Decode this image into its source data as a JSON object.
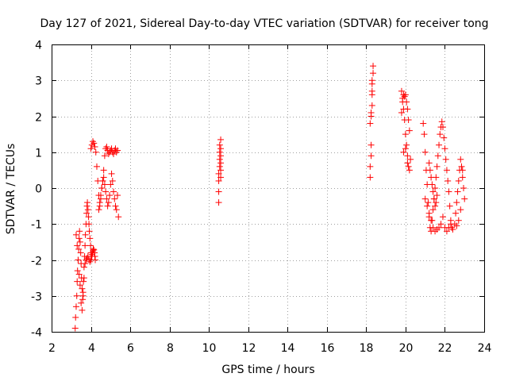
{
  "chart_data": {
    "type": "scatter",
    "title": "Day 127 of 2021, Sidereal Day-to-day VTEC variation (SDTVAR) for receiver tong",
    "xlabel": "GPS time / hours",
    "ylabel": "SDTVAR / TECUs",
    "xlim": [
      2,
      24
    ],
    "ylim": [
      -4,
      4
    ],
    "grid": true,
    "marker": "+",
    "color": "#ff0000",
    "xticks": [
      "2",
      "4",
      "6",
      "8",
      "10",
      "12",
      "14",
      "16",
      "18",
      "20",
      "22",
      "24"
    ],
    "yticks": [
      "-4",
      "-3",
      "-2",
      "-1",
      "0",
      "1",
      "2",
      "3",
      "4"
    ],
    "series": [
      {
        "name": "SDTVAR",
        "x": [
          3.2,
          3.22,
          3.25,
          3.28,
          3.3,
          3.32,
          3.35,
          3.38,
          3.4,
          3.42,
          3.45,
          3.48,
          3.5,
          3.52,
          3.55,
          3.58,
          3.6,
          3.62,
          3.65,
          3.68,
          3.7,
          3.72,
          3.75,
          3.78,
          3.8,
          3.82,
          3.85,
          3.88,
          3.9,
          3.92,
          3.95,
          3.98,
          4.0,
          4.02,
          4.05,
          4.08,
          4.1,
          4.12,
          4.15,
          4.18,
          4.2,
          4.22,
          3.25,
          3.3,
          3.35,
          3.4,
          3.45,
          3.5,
          3.55,
          3.6,
          3.65,
          3.7,
          3.75,
          3.8,
          3.85,
          3.9,
          3.95,
          4.0,
          4.05,
          4.0,
          4.05,
          4.1,
          4.15,
          4.2,
          4.25,
          4.3,
          4.35,
          4.4,
          4.45,
          4.5,
          4.55,
          4.6,
          4.65,
          4.7,
          4.75,
          4.8,
          4.85,
          4.9,
          4.95,
          5.0,
          5.05,
          5.1,
          5.15,
          5.2,
          5.25,
          5.3,
          5.35,
          4.4,
          4.45,
          4.5,
          4.55,
          4.6,
          4.65,
          4.7,
          4.75,
          4.8,
          4.85,
          4.9,
          4.95,
          5.0,
          5.05,
          5.1,
          5.15,
          5.2,
          5.25,
          5.3,
          5.35,
          5.4,
          10.5,
          10.5,
          10.5,
          10.5,
          10.55,
          10.55,
          10.55,
          10.55,
          10.6,
          10.6,
          10.6,
          10.6,
          10.6,
          10.6,
          18.2,
          18.2,
          18.25,
          18.25,
          18.25,
          18.3,
          18.3,
          18.3,
          18.35,
          18.35,
          18.2,
          18.25,
          18.3,
          18.3,
          19.8,
          19.85,
          19.9,
          19.95,
          20.0,
          20.05,
          20.1,
          20.15,
          20.2,
          20.25,
          19.8,
          19.85,
          19.9,
          19.95,
          20.0,
          20.05,
          20.1,
          20.15,
          20.2,
          19.9,
          20.0,
          20.1,
          20.9,
          20.95,
          21.0,
          21.05,
          21.1,
          21.15,
          21.2,
          21.25,
          21.3,
          21.35,
          21.4,
          21.45,
          21.5,
          21.55,
          21.6,
          21.65,
          21.7,
          21.75,
          21.8,
          21.85,
          21.9,
          21.95,
          22.0,
          22.05,
          22.1,
          22.15,
          22.2,
          22.25,
          22.3,
          22.35,
          22.4,
          21.0,
          21.1,
          21.2,
          21.3,
          21.4,
          21.5,
          21.6,
          21.7,
          21.8,
          21.9,
          22.0,
          22.1,
          22.2,
          22.3,
          21.2,
          21.25,
          21.3,
          21.35,
          21.4,
          21.45,
          21.5,
          21.55,
          21.6,
          22.5,
          22.55,
          22.6,
          22.65,
          22.7,
          22.75,
          22.8,
          22.85,
          22.9,
          22.95,
          23.0,
          22.6,
          22.7,
          22.8,
          22.9
        ],
        "y": [
          -3.9,
          -3.6,
          -3.3,
          -3.0,
          -2.6,
          -2.3,
          -2.0,
          -1.7,
          -1.4,
          -1.2,
          -1.5,
          -1.8,
          -2.1,
          -2.5,
          -2.8,
          -3.1,
          -2.9,
          -2.6,
          -2.2,
          -1.9,
          -1.6,
          -1.3,
          -1.0,
          -0.7,
          -0.5,
          -0.4,
          -0.6,
          -0.8,
          -1.0,
          -1.2,
          -1.4,
          -1.6,
          -1.8,
          -1.9,
          -1.85,
          -1.8,
          -1.75,
          -1.7,
          -1.72,
          -1.8,
          -1.9,
          -2.0,
          -1.3,
          -1.6,
          -2.0,
          -2.4,
          -2.7,
          -3.2,
          -3.4,
          -3.0,
          -2.5,
          -2.1,
          -2.0,
          -1.95,
          -1.9,
          -2.0,
          -2.05,
          -2.0,
          -1.9,
          1.1,
          1.2,
          1.3,
          1.25,
          1.15,
          1.0,
          0.6,
          0.2,
          -0.2,
          -0.5,
          -0.3,
          0.0,
          0.2,
          0.5,
          0.9,
          1.1,
          1.15,
          1.05,
          0.95,
          1.0,
          1.05,
          1.1,
          1.0,
          0.95,
          1.05,
          1.1,
          1.0,
          1.05,
          -0.6,
          -0.4,
          -0.2,
          0.0,
          0.2,
          0.3,
          0.1,
          -0.1,
          -0.3,
          -0.5,
          -0.4,
          -0.2,
          0.1,
          0.4,
          0.2,
          -0.1,
          -0.3,
          -0.5,
          -0.6,
          -0.2,
          -0.8,
          -0.4,
          -0.1,
          0.2,
          0.4,
          0.6,
          0.8,
          1.0,
          1.2,
          1.35,
          1.1,
          0.9,
          0.7,
          0.5,
          0.3,
          0.3,
          0.6,
          0.9,
          1.2,
          2.0,
          2.3,
          2.6,
          2.9,
          3.2,
          3.4,
          1.8,
          2.1,
          2.7,
          3.0,
          2.7,
          2.5,
          2.2,
          1.9,
          1.5,
          1.2,
          0.9,
          0.6,
          0.5,
          0.8,
          2.1,
          2.4,
          2.6,
          2.55,
          2.6,
          2.4,
          2.2,
          1.9,
          1.6,
          1.0,
          1.1,
          0.7,
          1.8,
          1.5,
          1.0,
          0.5,
          0.1,
          -0.4,
          -0.8,
          -1.1,
          -1.2,
          -0.9,
          -0.6,
          -0.3,
          0.0,
          0.3,
          0.6,
          0.9,
          1.2,
          1.5,
          1.7,
          1.85,
          1.7,
          1.4,
          1.1,
          0.8,
          0.5,
          0.2,
          -0.1,
          -0.5,
          -0.9,
          -1.1,
          -1.15,
          -0.3,
          -0.5,
          -0.7,
          -0.9,
          -1.1,
          -1.2,
          -1.15,
          -1.1,
          -1.0,
          -0.8,
          -1.1,
          -1.2,
          -1.1,
          -1.0,
          0.7,
          0.5,
          0.3,
          0.1,
          -0.1,
          -0.3,
          -0.5,
          -0.4,
          -0.2,
          -1.0,
          -0.7,
          -0.4,
          -0.1,
          0.2,
          0.5,
          0.8,
          0.6,
          0.3,
          0.0,
          -0.3,
          -1.05,
          -0.9,
          -0.6,
          0.5
        ]
      }
    ]
  }
}
